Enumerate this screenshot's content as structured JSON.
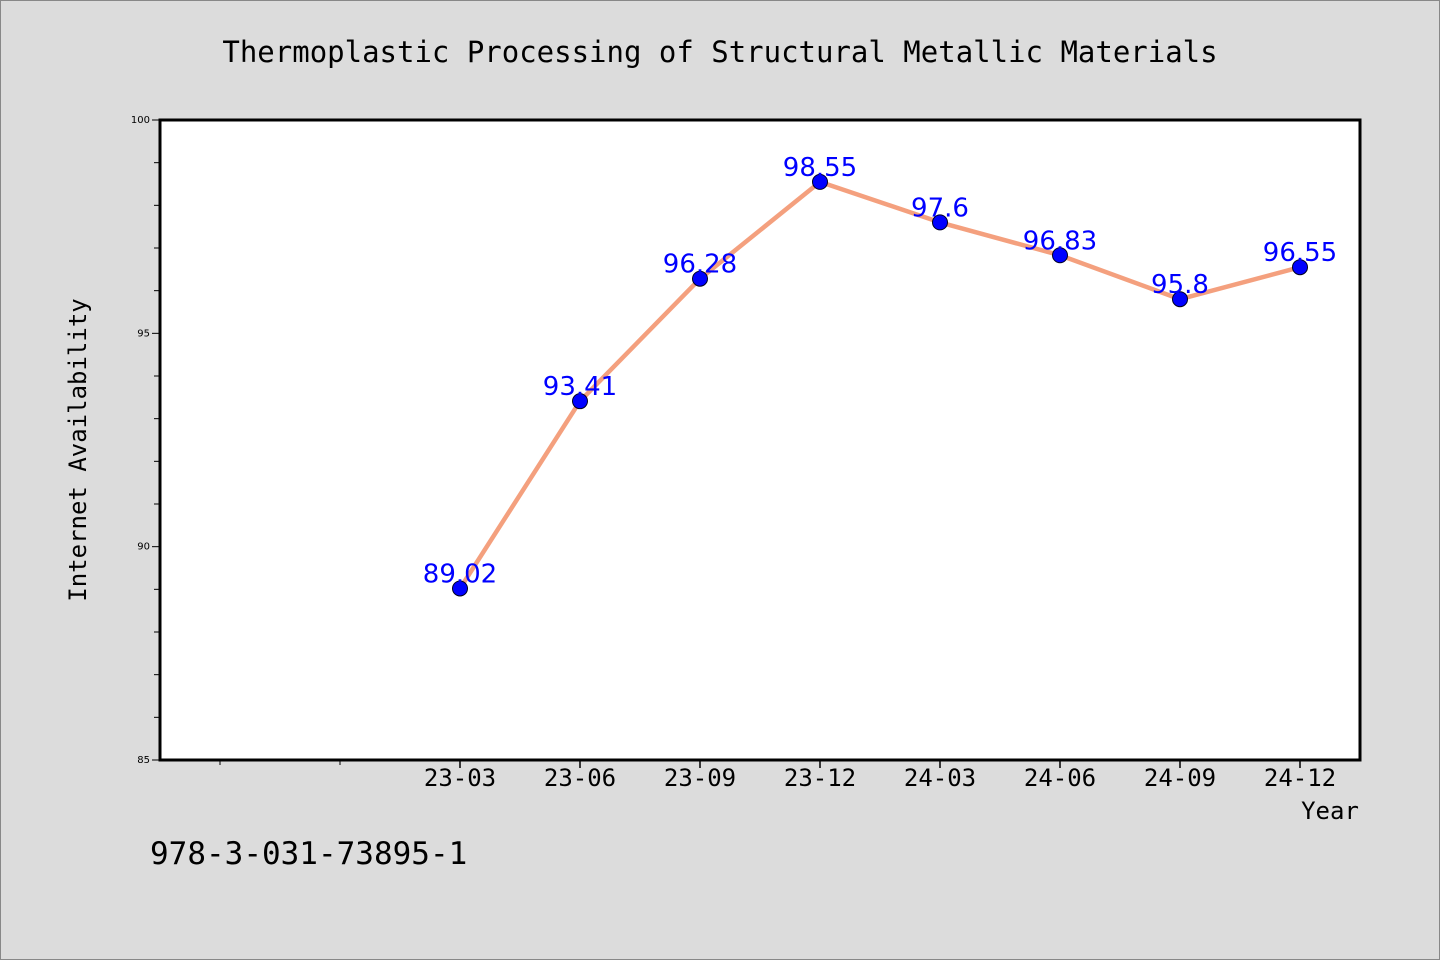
{
  "chart_data": {
    "type": "line",
    "title": "Thermoplastic Processing of Structural Metallic Materials",
    "xlabel": "Year",
    "ylabel": "Internet Availability",
    "categories": [
      "23-03",
      "23-06",
      "23-09",
      "23-12",
      "24-03",
      "24-06",
      "24-09",
      "24-12"
    ],
    "series": [
      {
        "values": [
          89.02,
          93.41,
          96.28,
          98.55,
          97.6,
          96.83,
          95.8,
          96.55
        ]
      }
    ],
    "data_labels": [
      "89.02",
      "93.41",
      "96.28",
      "98.55",
      "97.6",
      "96.83",
      "95.8",
      "96.55"
    ],
    "ylim": [
      85,
      100
    ],
    "yticks": [
      "85",
      "90",
      "95",
      "100"
    ],
    "grid": false,
    "line_color": "#f4a07e",
    "marker_color": "#0000ff",
    "label_color": "#0000ff",
    "background_color": "#dcdcdc",
    "plot_background": "#ffffff"
  },
  "footer": {
    "isbn": "978-3-031-73895-1"
  }
}
